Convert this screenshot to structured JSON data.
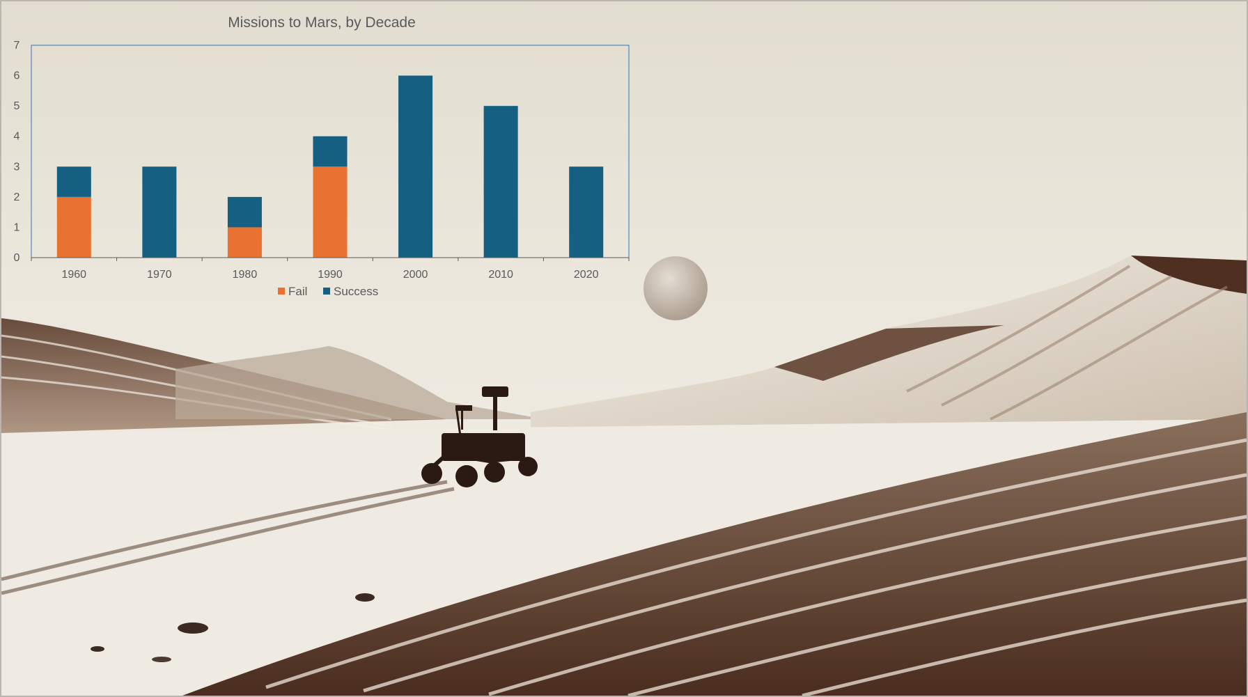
{
  "chart_data": {
    "type": "bar",
    "stacked": true,
    "title": "Missions to Mars, by Decade",
    "categories": [
      "1960",
      "1970",
      "1980",
      "1990",
      "2000",
      "2010",
      "2020"
    ],
    "series": [
      {
        "name": "Fail",
        "values": [
          2,
          0,
          1,
          3,
          0,
          0,
          0
        ],
        "color": "#e97132"
      },
      {
        "name": "Success",
        "values": [
          1,
          3,
          1,
          1,
          6,
          5,
          3
        ],
        "color": "#156082"
      }
    ],
    "ylim": [
      0,
      7
    ],
    "yticks": [
      "0",
      "1",
      "2",
      "3",
      "4",
      "5",
      "6",
      "7"
    ],
    "grid": false,
    "legend": "bottom"
  }
}
